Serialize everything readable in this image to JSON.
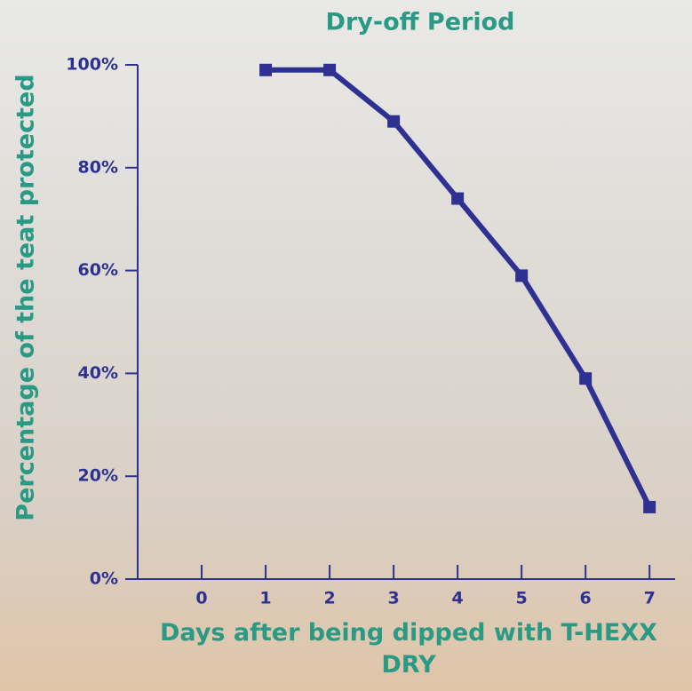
{
  "chart_data": {
    "type": "line",
    "title": "Dry-off Period",
    "x_label": "Days after being dipped with T-HEXX DRY",
    "y_label": "Percentage of the teat protected",
    "x": [
      1,
      2,
      3,
      4,
      5,
      6,
      7
    ],
    "series": [
      {
        "color": "#2e3192",
        "values": [
          99,
          99,
          89,
          74,
          59,
          39,
          14
        ]
      }
    ],
    "xlim": [
      -1,
      7.4
    ],
    "xticks": [
      0,
      1,
      2,
      3,
      4,
      5,
      6,
      7
    ],
    "ylim": [
      0,
      100
    ],
    "yticks": [
      {
        "value": 0,
        "label": "0%"
      },
      {
        "value": 20,
        "label": "20%"
      },
      {
        "value": 40,
        "label": "40%"
      },
      {
        "value": 60,
        "label": "60%"
      },
      {
        "value": 80,
        "label": "80%"
      },
      {
        "value": 100,
        "label": "100%"
      }
    ]
  }
}
